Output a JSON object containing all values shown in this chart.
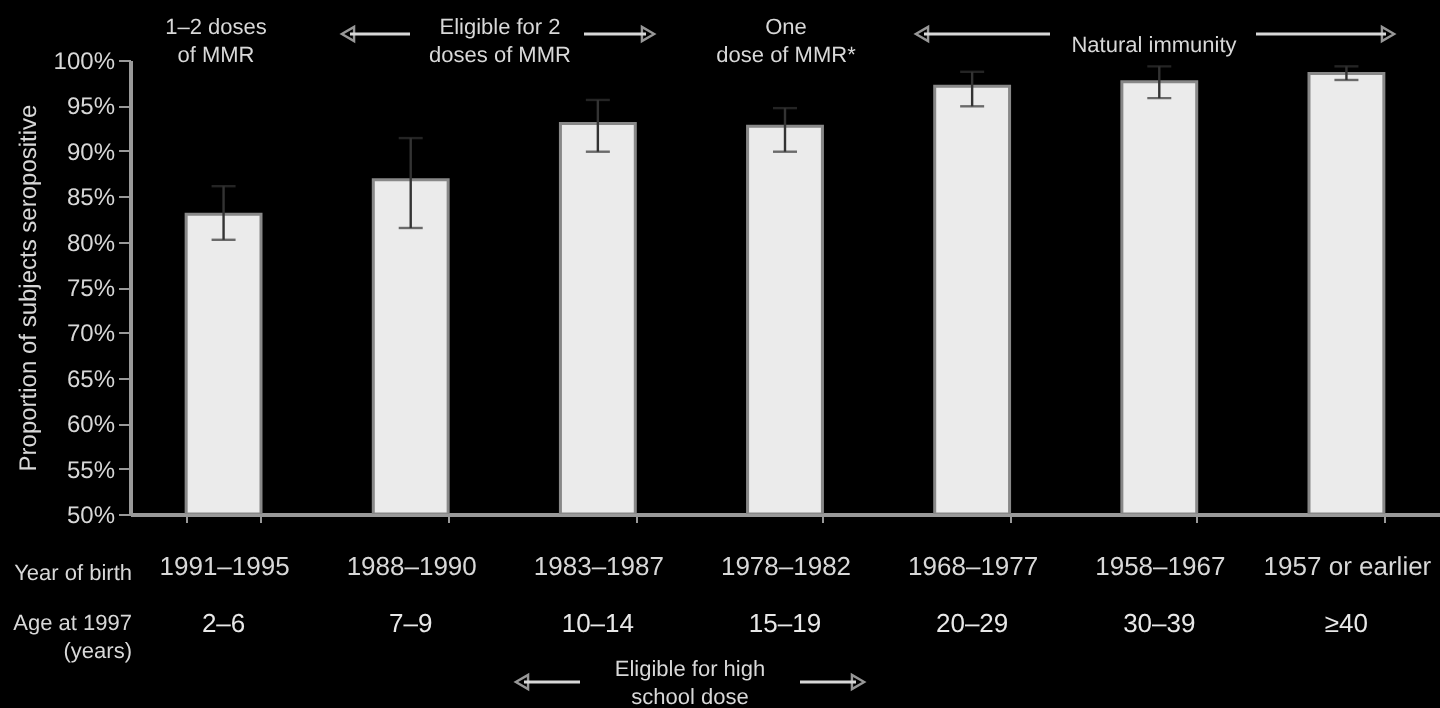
{
  "chart_data": {
    "type": "bar",
    "ylabel": "Proportion of subjects seropositive",
    "categories": [
      "1991–1995",
      "1988–1990",
      "1983–1987",
      "1978–1982",
      "1968–1977",
      "1958–1967",
      "1957 or earlier"
    ],
    "values": [
      83.0,
      86.8,
      93.0,
      92.7,
      97.1,
      97.6,
      98.5
    ],
    "errors": [
      [
        80.2,
        86.1
      ],
      [
        81.5,
        91.4
      ],
      [
        89.9,
        95.6
      ],
      [
        89.9,
        94.7
      ],
      [
        94.9,
        98.7
      ],
      [
        95.8,
        99.3
      ],
      [
        97.8,
        99.3
      ]
    ],
    "color": "#ebebeb",
    "ylim": [
      50,
      100
    ],
    "yticks": [
      {
        "value": 50,
        "label": "50%"
      },
      {
        "value": 55,
        "label": "55%"
      },
      {
        "value": 60,
        "label": "60%"
      },
      {
        "value": 65,
        "label": "65%"
      },
      {
        "value": 70,
        "label": "70%"
      },
      {
        "value": 75,
        "label": "75%"
      },
      {
        "value": 80,
        "label": "80%"
      },
      {
        "value": 85,
        "label": "85%"
      },
      {
        "value": 90,
        "label": "90%"
      },
      {
        "value": 95,
        "label": "95%"
      },
      {
        "value": 100,
        "label": "100%"
      }
    ],
    "grid": false,
    "annotations": [
      "1–2 doses of MMR",
      "Eligible for 2 doses of MMR",
      "One dose of MMR*",
      "Natural immunity",
      "Year of birth",
      "Age at 1997 (years)",
      "Eligible for high school dose",
      "2–6",
      "7–9",
      "10–14",
      "15–19",
      "20–29",
      "30–39",
      "≥40"
    ]
  }
}
